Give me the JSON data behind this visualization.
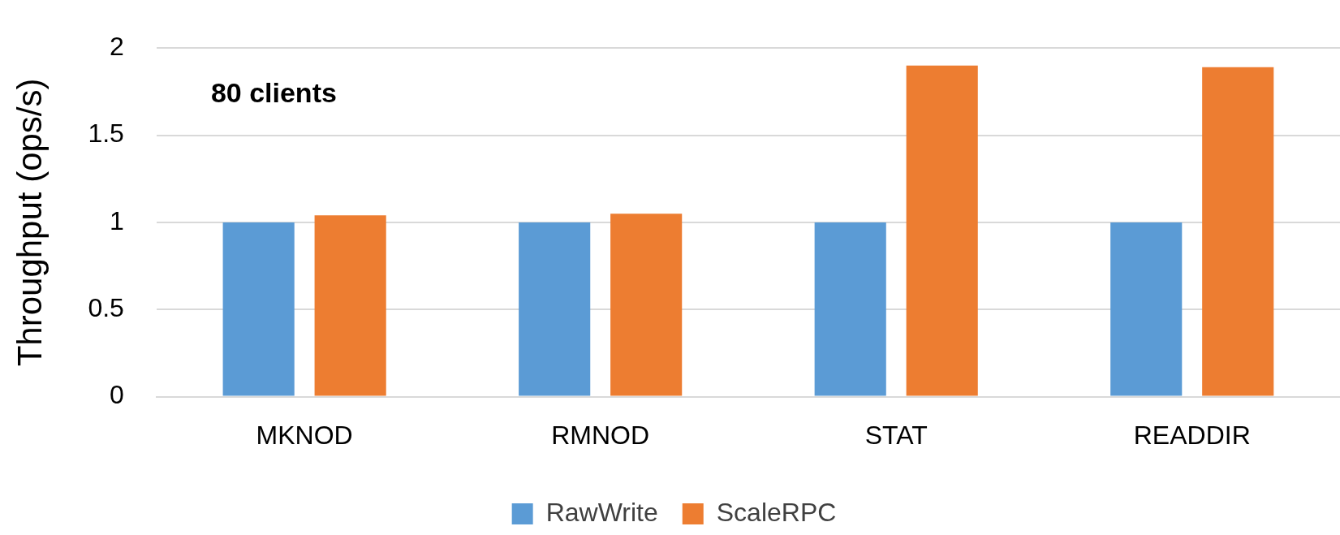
{
  "chart_data": {
    "type": "bar",
    "ylabel": "Throughput (ops/s)",
    "categories": [
      "MKNOD",
      "RMNOD",
      "STAT",
      "READDIR"
    ],
    "series": [
      {
        "name": "RawWrite",
        "color": "#5b9bd5",
        "values": [
          1,
          1,
          1,
          1
        ]
      },
      {
        "name": "ScaleRPC",
        "color": "#ed7d31",
        "values": [
          1.04,
          1.05,
          1.9,
          1.89
        ]
      }
    ],
    "ylim": [
      0,
      2
    ],
    "yticks": [
      0,
      0.5,
      1,
      1.5,
      2
    ],
    "grid": "y",
    "legend": "bottom",
    "annotations": [
      "80 clients"
    ]
  }
}
